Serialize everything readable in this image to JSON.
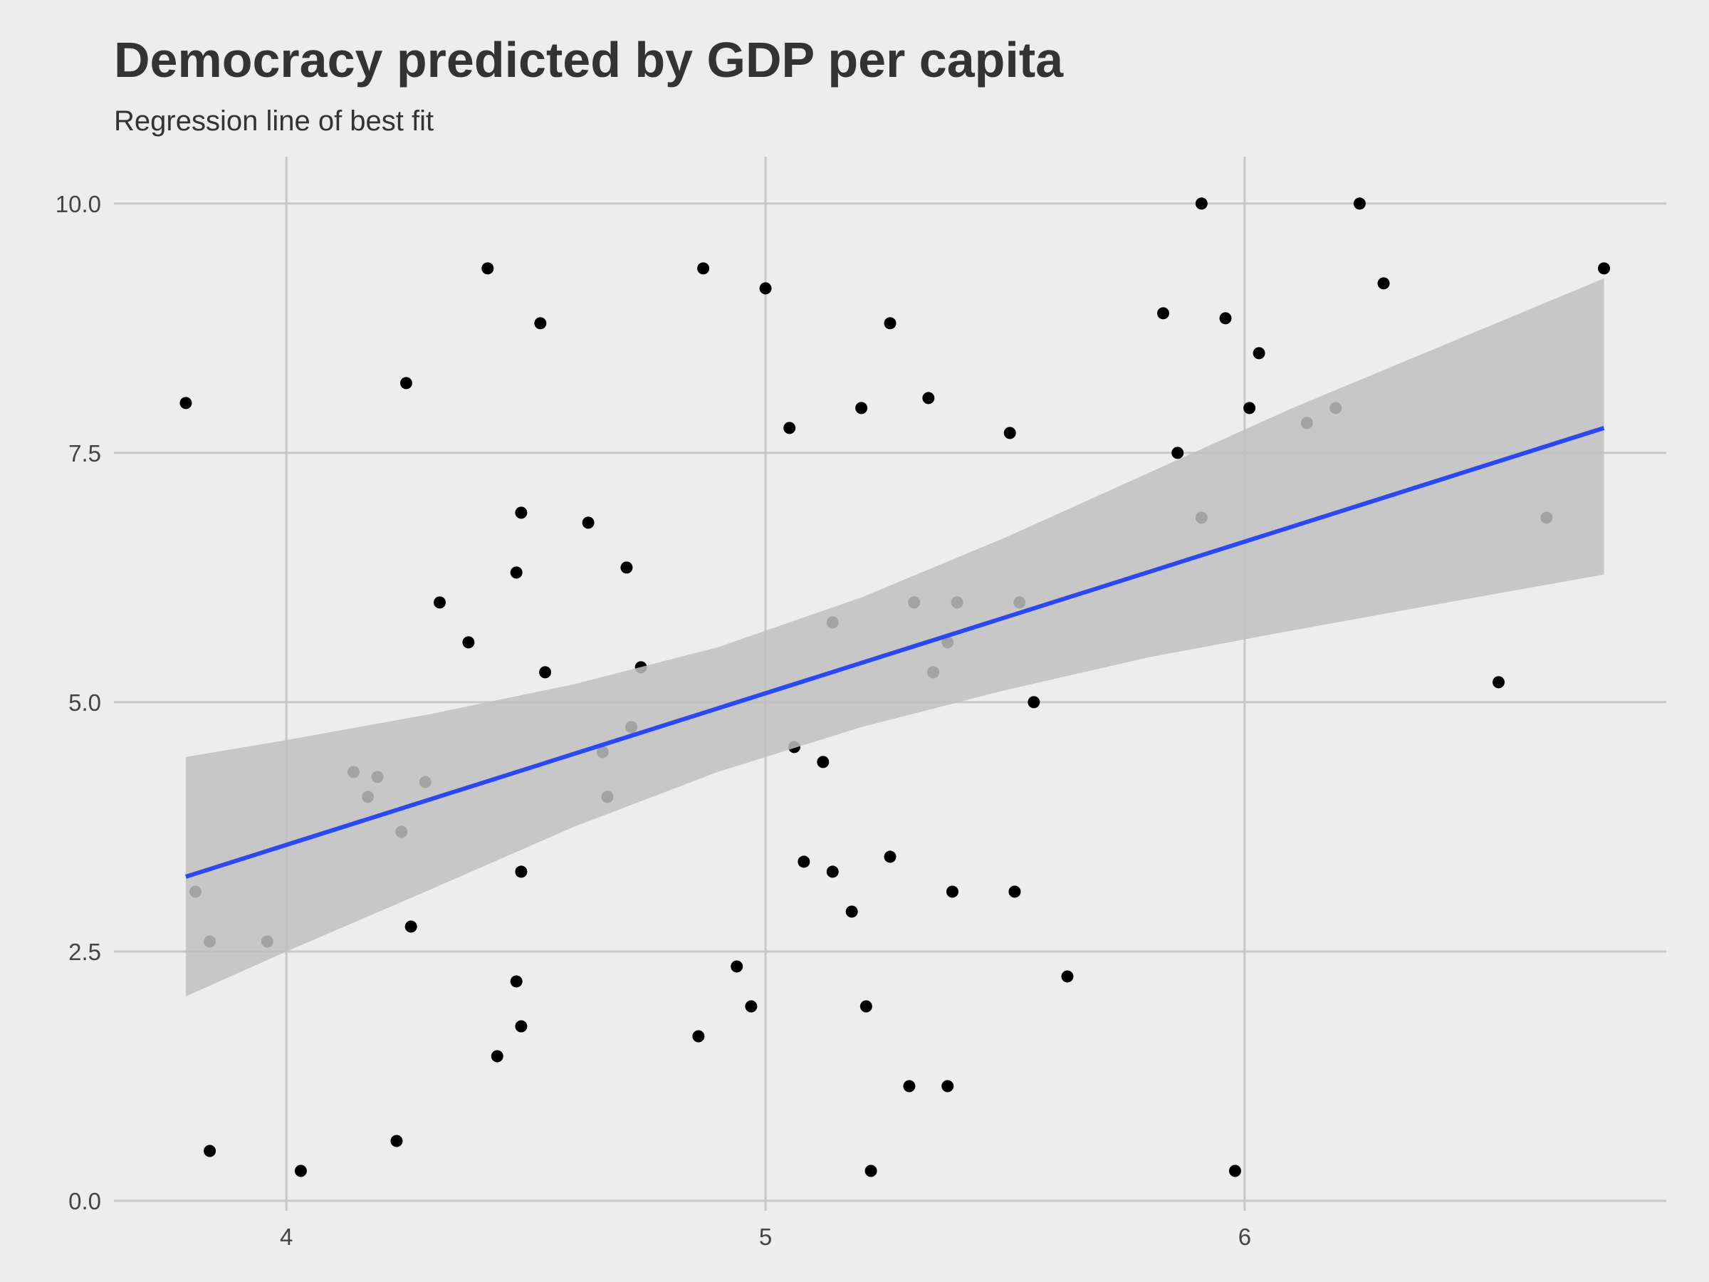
{
  "chart_data": {
    "type": "scatter",
    "title": "Democracy predicted by GDP per capita",
    "subtitle": "Regression line of best fit",
    "xlabel": "",
    "ylabel": "",
    "xlim": [
      3.64,
      6.88
    ],
    "ylim": [
      -0.1,
      10.47
    ],
    "x_ticks": [
      4,
      5,
      6
    ],
    "x_tick_labels": [
      "4",
      "5",
      "6"
    ],
    "y_ticks": [
      0,
      2.5,
      5,
      7.5,
      10
    ],
    "y_tick_labels": [
      "0.0",
      "2.5",
      "5.0",
      "7.5",
      "10.0"
    ],
    "grid": true,
    "legend": "none",
    "colors": {
      "background": "#EDEDED",
      "grid": "#C8C8C8",
      "points": "#000000",
      "regression_line": "#2B48F5",
      "confidence_band": "#BFBFBF"
    },
    "series": [
      {
        "type": "scatter",
        "x": [
          3.79,
          3.81,
          3.84,
          3.84,
          3.96,
          4.03,
          4.14,
          4.17,
          4.19,
          4.23,
          4.24,
          4.25,
          4.26,
          4.29,
          4.32,
          4.38,
          4.42,
          4.44,
          4.48,
          4.48,
          4.49,
          4.49,
          4.49,
          4.53,
          4.54,
          4.63,
          4.66,
          4.67,
          4.71,
          4.72,
          4.74,
          4.86,
          4.87,
          4.94,
          4.97,
          5.0,
          5.05,
          5.06,
          5.08,
          5.12,
          5.14,
          5.14,
          5.18,
          5.2,
          5.21,
          5.22,
          5.26,
          5.26,
          5.3,
          5.31,
          5.34,
          5.35,
          5.38,
          5.38,
          5.39,
          5.4,
          5.51,
          5.52,
          5.53,
          5.56,
          5.63,
          5.83,
          5.86,
          5.91,
          5.91,
          5.96,
          5.98,
          6.01,
          6.03,
          6.13,
          6.19,
          6.24,
          6.29,
          6.53,
          6.63,
          6.75
        ],
        "y": [
          8.0,
          3.1,
          2.6,
          0.5,
          2.6,
          0.3,
          4.3,
          4.05,
          4.25,
          0.6,
          3.7,
          8.2,
          2.75,
          4.2,
          6.0,
          5.6,
          9.35,
          1.45,
          2.2,
          6.3,
          6.9,
          1.75,
          3.3,
          8.8,
          5.3,
          6.8,
          4.5,
          4.05,
          6.35,
          4.75,
          5.35,
          1.65,
          9.35,
          2.35,
          1.95,
          9.15,
          7.75,
          4.55,
          3.4,
          4.4,
          5.8,
          3.3,
          2.9,
          7.95,
          1.95,
          0.3,
          8.8,
          3.45,
          1.15,
          6.0,
          8.05,
          5.3,
          5.6,
          1.15,
          3.1,
          6.0,
          7.7,
          3.1,
          6.0,
          5.0,
          2.25,
          8.9,
          7.5,
          10.0,
          6.85,
          8.85,
          0.3,
          7.95,
          8.5,
          7.8,
          7.95,
          10.0,
          9.2,
          5.2,
          6.85,
          9.35
        ]
      },
      {
        "type": "line",
        "x": [
          3.79,
          6.75
        ],
        "y": [
          3.25,
          7.75
        ]
      },
      {
        "type": "area",
        "x": [
          3.79,
          4.0,
          4.3,
          4.6,
          4.9,
          5.2,
          5.5,
          5.8,
          6.1,
          6.4,
          6.75
        ],
        "y_upper": [
          4.45,
          4.62,
          4.88,
          5.18,
          5.55,
          6.05,
          6.65,
          7.3,
          7.95,
          8.55,
          9.25
        ],
        "y_lower": [
          2.05,
          2.5,
          3.12,
          3.75,
          4.3,
          4.75,
          5.12,
          5.45,
          5.72,
          5.98,
          6.28
        ]
      }
    ]
  }
}
